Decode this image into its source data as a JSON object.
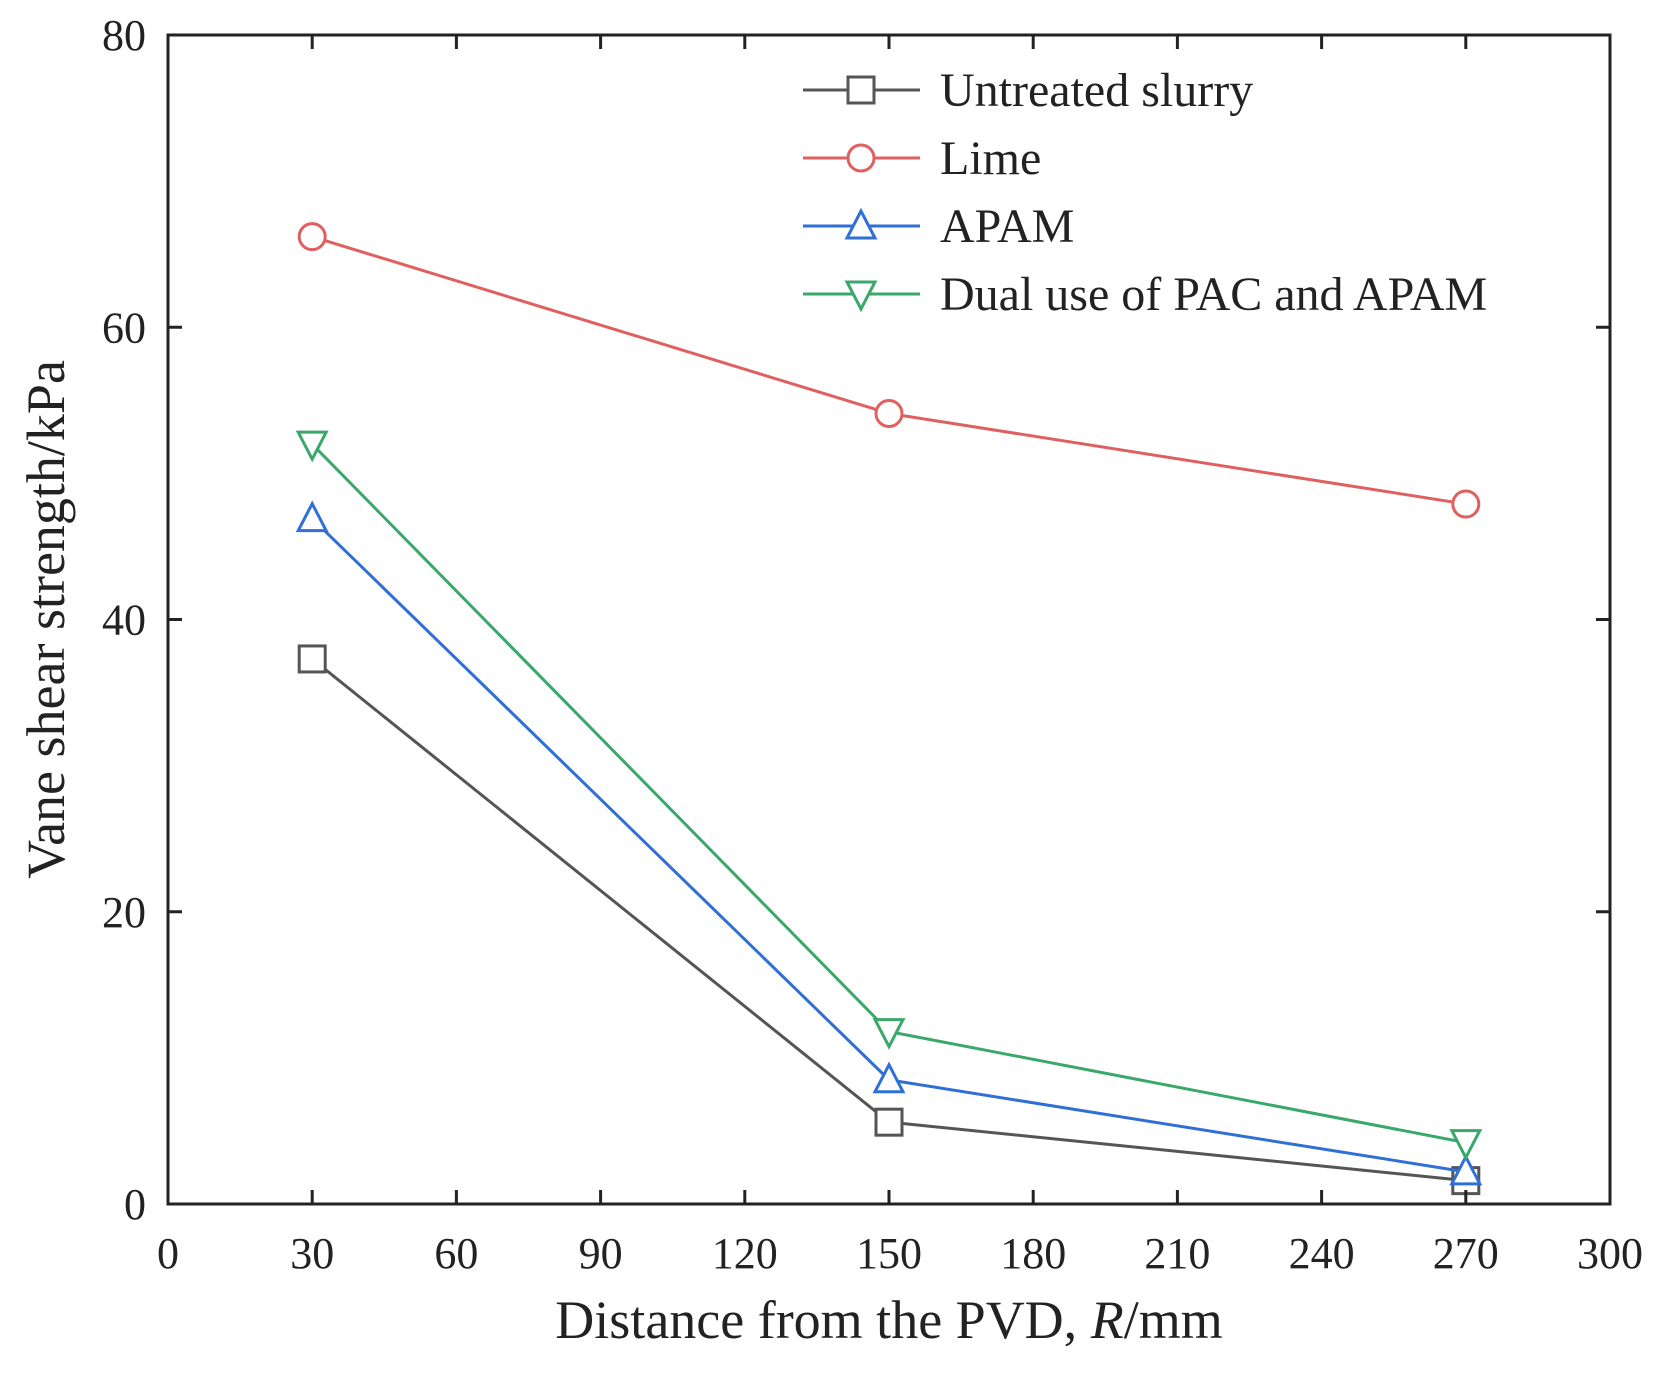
{
  "chart_data": {
    "type": "line",
    "title": "",
    "xlabel_prefix": "Distance from the PVD, ",
    "xlabel_var": "R",
    "xlabel_suffix": "/mm",
    "ylabel": "Vane shear strength/kPa",
    "xlim": [
      0,
      300
    ],
    "ylim": [
      0,
      80
    ],
    "xticks": [
      0,
      30,
      60,
      90,
      120,
      150,
      180,
      210,
      240,
      270,
      300
    ],
    "yticks": [
      0,
      20,
      40,
      60,
      80
    ],
    "grid": false,
    "legend_position": "top-right",
    "series": [
      {
        "name": "Untreated slurry",
        "marker": "square",
        "color": "#555555",
        "x": [
          30,
          150,
          270
        ],
        "values": [
          37.3,
          5.6,
          1.6
        ]
      },
      {
        "name": "Lime",
        "marker": "circle",
        "color": "#e06060",
        "x": [
          30,
          150,
          270
        ],
        "values": [
          66.2,
          54.1,
          47.9
        ]
      },
      {
        "name": "APAM",
        "marker": "triangle-up",
        "color": "#2f6fd6",
        "x": [
          30,
          150,
          270
        ],
        "values": [
          46.9,
          8.5,
          2.2
        ]
      },
      {
        "name": "Dual use of PAC and APAM",
        "marker": "triangle-down",
        "color": "#3aa86a",
        "x": [
          30,
          150,
          270
        ],
        "values": [
          52.0,
          11.8,
          4.2
        ]
      }
    ]
  }
}
